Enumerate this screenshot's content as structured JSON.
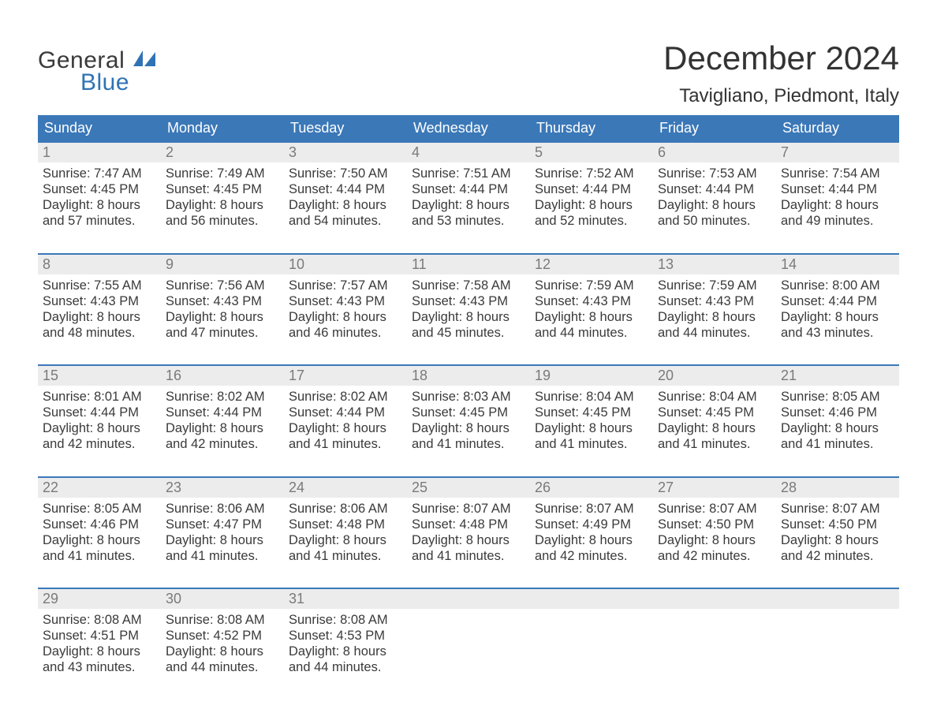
{
  "brand": {
    "line1": "General",
    "line2": "Blue",
    "text_color": "#3a3a3a",
    "accent_color": "#2f73b5"
  },
  "title": "December 2024",
  "location": "Tavigliano, Piedmont, Italy",
  "colors": {
    "header_bg": "#3b78b8",
    "header_text": "#ffffff",
    "daynum_bg": "#ececec",
    "daynum_text": "#7a7a7a",
    "week_border": "#3b78b8",
    "body_text": "#3a3a3a",
    "page_bg": "#ffffff"
  },
  "typography": {
    "title_fontsize": 42,
    "location_fontsize": 24,
    "dow_fontsize": 18,
    "daynum_fontsize": 18,
    "detail_fontsize": 16.5,
    "font_family": "Arial"
  },
  "dow": [
    "Sunday",
    "Monday",
    "Tuesday",
    "Wednesday",
    "Thursday",
    "Friday",
    "Saturday"
  ],
  "weeks": [
    [
      {
        "n": "1",
        "sr": "Sunrise: 7:47 AM",
        "ss": "Sunset: 4:45 PM",
        "d1": "Daylight: 8 hours",
        "d2": "and 57 minutes."
      },
      {
        "n": "2",
        "sr": "Sunrise: 7:49 AM",
        "ss": "Sunset: 4:45 PM",
        "d1": "Daylight: 8 hours",
        "d2": "and 56 minutes."
      },
      {
        "n": "3",
        "sr": "Sunrise: 7:50 AM",
        "ss": "Sunset: 4:44 PM",
        "d1": "Daylight: 8 hours",
        "d2": "and 54 minutes."
      },
      {
        "n": "4",
        "sr": "Sunrise: 7:51 AM",
        "ss": "Sunset: 4:44 PM",
        "d1": "Daylight: 8 hours",
        "d2": "and 53 minutes."
      },
      {
        "n": "5",
        "sr": "Sunrise: 7:52 AM",
        "ss": "Sunset: 4:44 PM",
        "d1": "Daylight: 8 hours",
        "d2": "and 52 minutes."
      },
      {
        "n": "6",
        "sr": "Sunrise: 7:53 AM",
        "ss": "Sunset: 4:44 PM",
        "d1": "Daylight: 8 hours",
        "d2": "and 50 minutes."
      },
      {
        "n": "7",
        "sr": "Sunrise: 7:54 AM",
        "ss": "Sunset: 4:44 PM",
        "d1": "Daylight: 8 hours",
        "d2": "and 49 minutes."
      }
    ],
    [
      {
        "n": "8",
        "sr": "Sunrise: 7:55 AM",
        "ss": "Sunset: 4:43 PM",
        "d1": "Daylight: 8 hours",
        "d2": "and 48 minutes."
      },
      {
        "n": "9",
        "sr": "Sunrise: 7:56 AM",
        "ss": "Sunset: 4:43 PM",
        "d1": "Daylight: 8 hours",
        "d2": "and 47 minutes."
      },
      {
        "n": "10",
        "sr": "Sunrise: 7:57 AM",
        "ss": "Sunset: 4:43 PM",
        "d1": "Daylight: 8 hours",
        "d2": "and 46 minutes."
      },
      {
        "n": "11",
        "sr": "Sunrise: 7:58 AM",
        "ss": "Sunset: 4:43 PM",
        "d1": "Daylight: 8 hours",
        "d2": "and 45 minutes."
      },
      {
        "n": "12",
        "sr": "Sunrise: 7:59 AM",
        "ss": "Sunset: 4:43 PM",
        "d1": "Daylight: 8 hours",
        "d2": "and 44 minutes."
      },
      {
        "n": "13",
        "sr": "Sunrise: 7:59 AM",
        "ss": "Sunset: 4:43 PM",
        "d1": "Daylight: 8 hours",
        "d2": "and 44 minutes."
      },
      {
        "n": "14",
        "sr": "Sunrise: 8:00 AM",
        "ss": "Sunset: 4:44 PM",
        "d1": "Daylight: 8 hours",
        "d2": "and 43 minutes."
      }
    ],
    [
      {
        "n": "15",
        "sr": "Sunrise: 8:01 AM",
        "ss": "Sunset: 4:44 PM",
        "d1": "Daylight: 8 hours",
        "d2": "and 42 minutes."
      },
      {
        "n": "16",
        "sr": "Sunrise: 8:02 AM",
        "ss": "Sunset: 4:44 PM",
        "d1": "Daylight: 8 hours",
        "d2": "and 42 minutes."
      },
      {
        "n": "17",
        "sr": "Sunrise: 8:02 AM",
        "ss": "Sunset: 4:44 PM",
        "d1": "Daylight: 8 hours",
        "d2": "and 41 minutes."
      },
      {
        "n": "18",
        "sr": "Sunrise: 8:03 AM",
        "ss": "Sunset: 4:45 PM",
        "d1": "Daylight: 8 hours",
        "d2": "and 41 minutes."
      },
      {
        "n": "19",
        "sr": "Sunrise: 8:04 AM",
        "ss": "Sunset: 4:45 PM",
        "d1": "Daylight: 8 hours",
        "d2": "and 41 minutes."
      },
      {
        "n": "20",
        "sr": "Sunrise: 8:04 AM",
        "ss": "Sunset: 4:45 PM",
        "d1": "Daylight: 8 hours",
        "d2": "and 41 minutes."
      },
      {
        "n": "21",
        "sr": "Sunrise: 8:05 AM",
        "ss": "Sunset: 4:46 PM",
        "d1": "Daylight: 8 hours",
        "d2": "and 41 minutes."
      }
    ],
    [
      {
        "n": "22",
        "sr": "Sunrise: 8:05 AM",
        "ss": "Sunset: 4:46 PM",
        "d1": "Daylight: 8 hours",
        "d2": "and 41 minutes."
      },
      {
        "n": "23",
        "sr": "Sunrise: 8:06 AM",
        "ss": "Sunset: 4:47 PM",
        "d1": "Daylight: 8 hours",
        "d2": "and 41 minutes."
      },
      {
        "n": "24",
        "sr": "Sunrise: 8:06 AM",
        "ss": "Sunset: 4:48 PM",
        "d1": "Daylight: 8 hours",
        "d2": "and 41 minutes."
      },
      {
        "n": "25",
        "sr": "Sunrise: 8:07 AM",
        "ss": "Sunset: 4:48 PM",
        "d1": "Daylight: 8 hours",
        "d2": "and 41 minutes."
      },
      {
        "n": "26",
        "sr": "Sunrise: 8:07 AM",
        "ss": "Sunset: 4:49 PM",
        "d1": "Daylight: 8 hours",
        "d2": "and 42 minutes."
      },
      {
        "n": "27",
        "sr": "Sunrise: 8:07 AM",
        "ss": "Sunset: 4:50 PM",
        "d1": "Daylight: 8 hours",
        "d2": "and 42 minutes."
      },
      {
        "n": "28",
        "sr": "Sunrise: 8:07 AM",
        "ss": "Sunset: 4:50 PM",
        "d1": "Daylight: 8 hours",
        "d2": "and 42 minutes."
      }
    ],
    [
      {
        "n": "29",
        "sr": "Sunrise: 8:08 AM",
        "ss": "Sunset: 4:51 PM",
        "d1": "Daylight: 8 hours",
        "d2": "and 43 minutes."
      },
      {
        "n": "30",
        "sr": "Sunrise: 8:08 AM",
        "ss": "Sunset: 4:52 PM",
        "d1": "Daylight: 8 hours",
        "d2": "and 44 minutes."
      },
      {
        "n": "31",
        "sr": "Sunrise: 8:08 AM",
        "ss": "Sunset: 4:53 PM",
        "d1": "Daylight: 8 hours",
        "d2": "and 44 minutes."
      },
      {
        "n": "",
        "sr": "",
        "ss": "",
        "d1": "",
        "d2": ""
      },
      {
        "n": "",
        "sr": "",
        "ss": "",
        "d1": "",
        "d2": ""
      },
      {
        "n": "",
        "sr": "",
        "ss": "",
        "d1": "",
        "d2": ""
      },
      {
        "n": "",
        "sr": "",
        "ss": "",
        "d1": "",
        "d2": ""
      }
    ]
  ]
}
